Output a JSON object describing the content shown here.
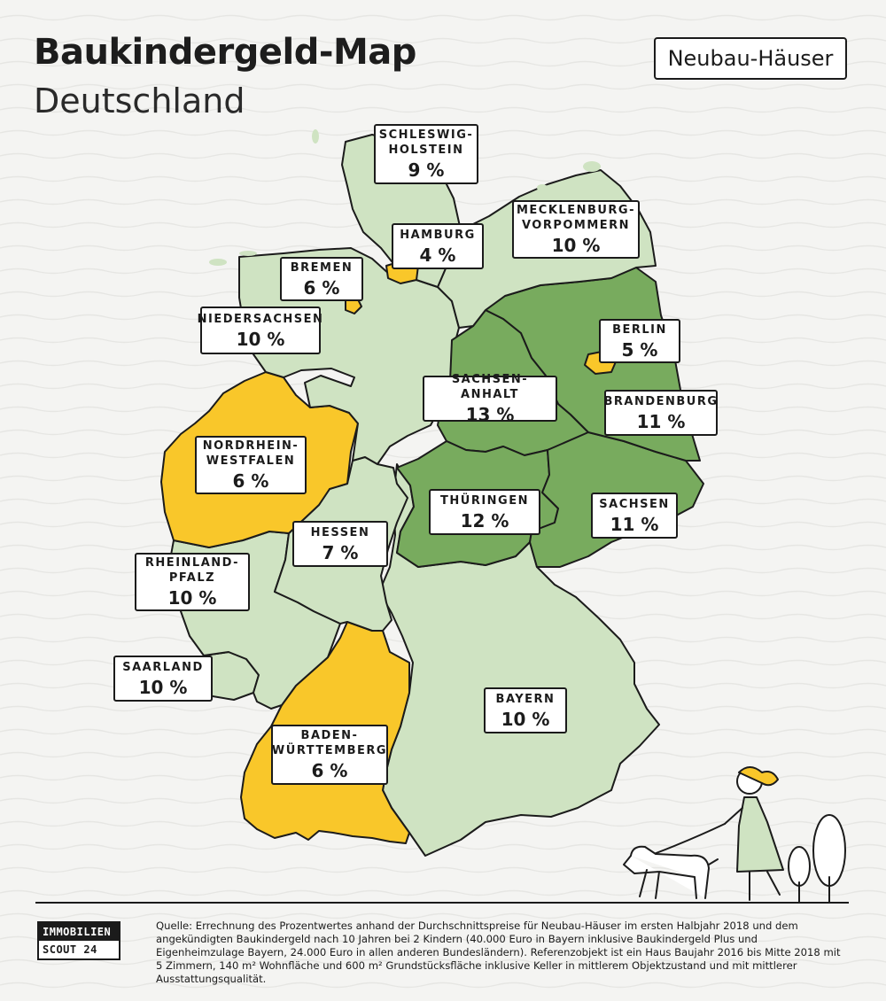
{
  "title": "Baukindergeld-Map",
  "subtitle": "Deutschland",
  "badge": "Neubau-Häuser",
  "colors": {
    "background": "#f4f4f2",
    "light": "#cfe3c2",
    "dark": "#78ab5e",
    "yellow": "#f9c72a",
    "outline": "#1b1b1b"
  },
  "legend_note": "",
  "states": [
    {
      "id": "schleswig-holstein",
      "name": "SCHLESWIG-\nHOLSTEIN",
      "value": "9 %",
      "fill": "light"
    },
    {
      "id": "hamburg",
      "name": "HAMBURG",
      "value": "4 %",
      "fill": "yellow"
    },
    {
      "id": "mecklenburg-vorpommern",
      "name": "MECKLENBURG-\nVORPOMMERN",
      "value": "10 %",
      "fill": "light"
    },
    {
      "id": "bremen",
      "name": "BREMEN",
      "value": "6 %",
      "fill": "yellow"
    },
    {
      "id": "niedersachsen",
      "name": "NIEDERSACHSEN",
      "value": "10 %",
      "fill": "light"
    },
    {
      "id": "berlin",
      "name": "BERLIN",
      "value": "5 %",
      "fill": "yellow"
    },
    {
      "id": "sachsen-anhalt",
      "name": "SACHSEN-ANHALT",
      "value": "13 %",
      "fill": "dark"
    },
    {
      "id": "brandenburg",
      "name": "BRANDENBURG",
      "value": "11 %",
      "fill": "dark"
    },
    {
      "id": "nordrhein-westfalen",
      "name": "NORDRHEIN-\nWESTFALEN",
      "value": "6 %",
      "fill": "yellow"
    },
    {
      "id": "thueringen",
      "name": "THÜRINGEN",
      "value": "12 %",
      "fill": "dark"
    },
    {
      "id": "sachsen",
      "name": "SACHSEN",
      "value": "11 %",
      "fill": "dark"
    },
    {
      "id": "hessen",
      "name": "HESSEN",
      "value": "7 %",
      "fill": "light"
    },
    {
      "id": "rheinland-pfalz",
      "name": "RHEINLAND-\nPFALZ",
      "value": "10 %",
      "fill": "light"
    },
    {
      "id": "saarland",
      "name": "SAARLAND",
      "value": "10 %",
      "fill": "light"
    },
    {
      "id": "bayern",
      "name": "BAYERN",
      "value": "10 %",
      "fill": "light"
    },
    {
      "id": "baden-wuerttemberg",
      "name": "BADEN-\nWÜRTTEMBERG",
      "value": "6 %",
      "fill": "yellow"
    }
  ],
  "logo": {
    "line1": "IMMOBILIEN",
    "line2": "SCOUT 24"
  },
  "source": "Quelle: Errechnung des Prozentwertes anhand der Durchschnittspreise für Neubau-Häuser im ersten Halbjahr 2018 und dem angekündigten Baukindergeld nach 10 Jahren bei 2 Kindern (40.000 Euro in Bayern inklusive Baukindergeld Plus und Eigenheimzulage Bayern, 24.000 Euro in allen anderen Bundesländern). Referenzobjekt ist ein Haus Baujahr 2016 bis Mitte 2018 mit 5 Zimmern, 140 m² Wohnfläche und 600 m² Grundstücksfläche inklusive Keller in mittlerem Objektzustand und mit mittlerer Ausstattungsqualität."
}
